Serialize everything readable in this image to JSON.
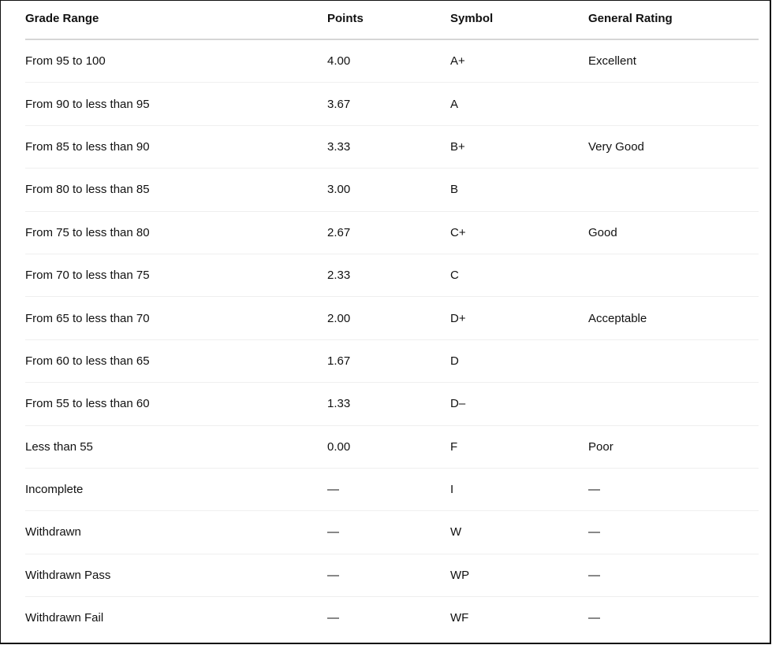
{
  "table": {
    "headers": [
      "Grade Range",
      "Points",
      "Symbol",
      "General Rating"
    ],
    "rows": [
      [
        "From 95 to 100",
        "4.00",
        "A+",
        "Excellent"
      ],
      [
        "From 90 to less than 95",
        "3.67",
        "A",
        ""
      ],
      [
        "From 85 to less than 90",
        "3.33",
        "B+",
        "Very Good"
      ],
      [
        "From 80 to less than 85",
        "3.00",
        "B",
        ""
      ],
      [
        "From 75 to less than 80",
        "2.67",
        "C+",
        "Good"
      ],
      [
        "From 70 to less than 75",
        "2.33",
        "C",
        ""
      ],
      [
        "From 65 to less than 70",
        "2.00",
        "D+",
        "Acceptable"
      ],
      [
        "From 60 to less than 65",
        "1.67",
        "D",
        ""
      ],
      [
        "From 55 to less than 60",
        "1.33",
        "D–",
        ""
      ],
      [
        "Less than 55",
        "0.00",
        "F",
        "Poor"
      ],
      [
        "Incomplete",
        "—",
        "I",
        "—"
      ],
      [
        "Withdrawn",
        "—",
        "W",
        "—"
      ],
      [
        "Withdrawn Pass",
        "—",
        "WP",
        "—"
      ],
      [
        "Withdrawn Fail",
        "—",
        "WF",
        "—"
      ]
    ]
  }
}
